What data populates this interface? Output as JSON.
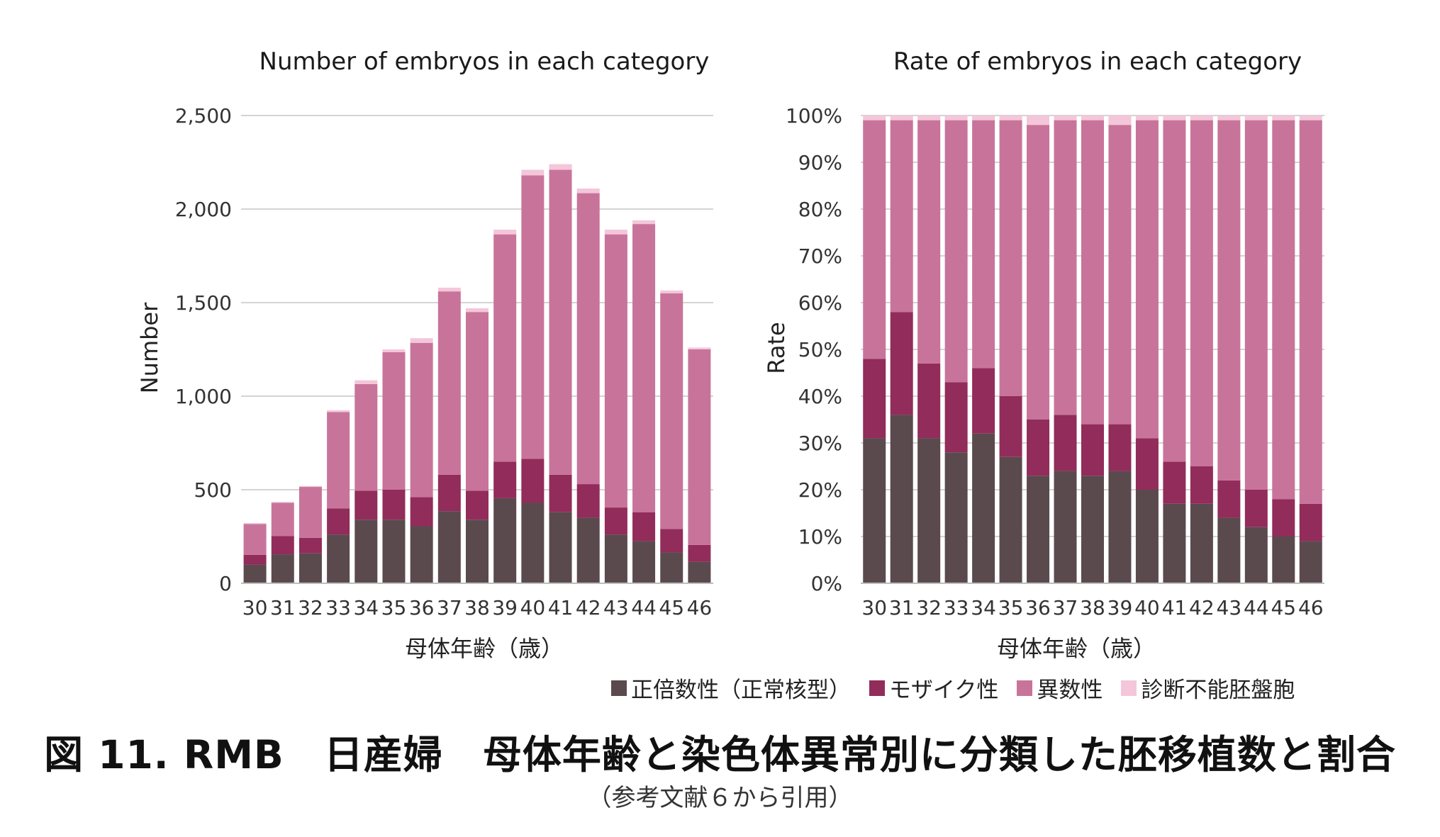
{
  "chart_data": [
    {
      "type": "bar",
      "stacked": true,
      "title": "Number of embryos in each category",
      "xlabel": "母体年齢（歳）",
      "ylabel": "Number",
      "ylim": [
        0,
        2500
      ],
      "yticks": [
        "0",
        "500",
        "1,000",
        "1,500",
        "2,000",
        "2,500"
      ],
      "grid": true,
      "categories": [
        "30",
        "31",
        "32",
        "33",
        "34",
        "35",
        "36",
        "37",
        "38",
        "39",
        "40",
        "41",
        "42",
        "43",
        "44",
        "45",
        "46"
      ],
      "series": [
        {
          "name": "正倍数性（正常核型）",
          "color": "#5a4a4e",
          "values": [
            100,
            155,
            160,
            260,
            340,
            340,
            305,
            385,
            340,
            455,
            430,
            380,
            350,
            260,
            225,
            165,
            115
          ]
        },
        {
          "name": "モザイク性",
          "color": "#922c5a",
          "values": [
            52,
            97,
            83,
            140,
            155,
            160,
            155,
            195,
            155,
            195,
            235,
            200,
            180,
            145,
            155,
            125,
            90
          ]
        },
        {
          "name": "異数性",
          "color": "#c8749a",
          "values": [
            165,
            178,
            272,
            515,
            570,
            735,
            825,
            980,
            955,
            1215,
            1515,
            1630,
            1555,
            1460,
            1540,
            1260,
            1045
          ]
        },
        {
          "name": "診断不能胚盤胞",
          "color": "#f4c6da",
          "values": [
            5,
            5,
            5,
            10,
            20,
            15,
            25,
            20,
            20,
            25,
            30,
            30,
            25,
            25,
            20,
            15,
            10
          ]
        }
      ]
    },
    {
      "type": "bar",
      "stacked": true,
      "title": "Rate of embryos in each category",
      "xlabel": "母体年齢（歳）",
      "ylabel": "Rate",
      "ylim": [
        0,
        100
      ],
      "yticks": [
        "0%",
        "10%",
        "20%",
        "30%",
        "40%",
        "50%",
        "60%",
        "70%",
        "80%",
        "90%",
        "100%"
      ],
      "grid": true,
      "categories": [
        "30",
        "31",
        "32",
        "33",
        "34",
        "35",
        "36",
        "37",
        "38",
        "39",
        "40",
        "41",
        "42",
        "43",
        "44",
        "45",
        "46"
      ],
      "series": [
        {
          "name": "正倍数性（正常核型）",
          "color": "#5a4a4e",
          "values": [
            31,
            36,
            31,
            28,
            32,
            27,
            23,
            24,
            23,
            24,
            20,
            17,
            17,
            14,
            12,
            10,
            9
          ]
        },
        {
          "name": "モザイク性",
          "color": "#922c5a",
          "values": [
            17,
            22,
            16,
            15,
            14,
            13,
            12,
            12,
            11,
            10,
            11,
            9,
            8,
            8,
            8,
            8,
            8
          ]
        },
        {
          "name": "異数性",
          "color": "#c8749a",
          "values": [
            51,
            41,
            52,
            56,
            53,
            59,
            63,
            63,
            65,
            64,
            68,
            73,
            74,
            77,
            79,
            81,
            82
          ]
        },
        {
          "name": "診断不能胚盤胞",
          "color": "#f4c6da",
          "values": [
            1,
            1,
            1,
            1,
            1,
            1,
            2,
            1,
            1,
            2,
            1,
            1,
            1,
            1,
            1,
            1,
            1
          ]
        }
      ]
    }
  ],
  "legend": [
    {
      "label": "正倍数性（正常核型）",
      "color": "#5a4a4e"
    },
    {
      "label": "モザイク性",
      "color": "#922c5a"
    },
    {
      "label": "異数性",
      "color": "#c8749a"
    },
    {
      "label": "診断不能胚盤胞",
      "color": "#f4c6da"
    }
  ],
  "caption": "図 11.  RMB　日産婦　母体年齢と染色体異常別に分類した胚移植数と割合",
  "source_note": "（参考文献６から引用）"
}
